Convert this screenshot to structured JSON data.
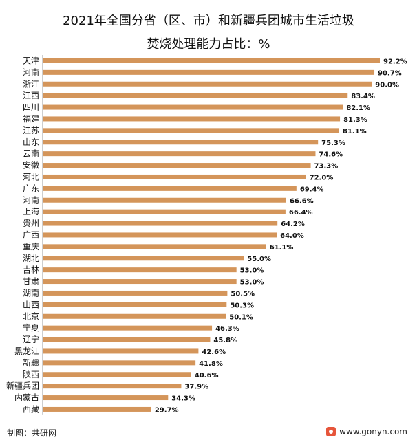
{
  "chart_data": {
    "type": "bar",
    "orientation": "horizontal",
    "title_line1": "2021年全国分省（区、市）和新疆兵团城市生活垃圾",
    "title_line2": "焚烧处理能力占比：%",
    "categories": [
      "天津",
      "河南",
      "浙江",
      "江西",
      "四川",
      "福建",
      "江苏",
      "山东",
      "云南",
      "安徽",
      "河北",
      "广东",
      "河南",
      "上海",
      "贵州",
      "广西",
      "重庆",
      "湖北",
      "吉林",
      "甘肃",
      "湖南",
      "山西",
      "北京",
      "宁夏",
      "辽宁",
      "黑龙江",
      "新疆",
      "陕西",
      "新疆兵团",
      "内蒙古",
      "西藏"
    ],
    "values": [
      92.2,
      90.7,
      90.0,
      83.4,
      82.1,
      81.3,
      81.1,
      75.3,
      74.6,
      73.3,
      72.0,
      69.4,
      66.6,
      66.4,
      64.2,
      64.0,
      61.1,
      55.0,
      53.0,
      53.0,
      50.5,
      50.3,
      50.1,
      46.3,
      45.8,
      42.6,
      41.8,
      40.6,
      37.9,
      34.3,
      29.7
    ],
    "value_labels": [
      "92.2%",
      "90.7%",
      "90.0%",
      "83.4%",
      "82.1%",
      "81.3%",
      "81.1%",
      "75.3%",
      "74.6%",
      "73.3%",
      "72.0%",
      "69.4%",
      "66.6%",
      "66.4%",
      "64.2%",
      "64.0%",
      "61.1%",
      "55.0%",
      "53.0%",
      "53.0%",
      "50.5%",
      "50.3%",
      "50.1%",
      "46.3%",
      "45.8%",
      "42.6%",
      "41.8%",
      "40.6%",
      "37.9%",
      "34.3%",
      "29.7%"
    ],
    "bar_color": "#d4955a",
    "grid": false,
    "legend": false
  },
  "footer": {
    "source": "制图：共研网",
    "website": "www.gonyn.com"
  },
  "colors": {
    "bar": "#d4955a",
    "axis": "#9e9e9e",
    "logo": "#e6553a"
  }
}
